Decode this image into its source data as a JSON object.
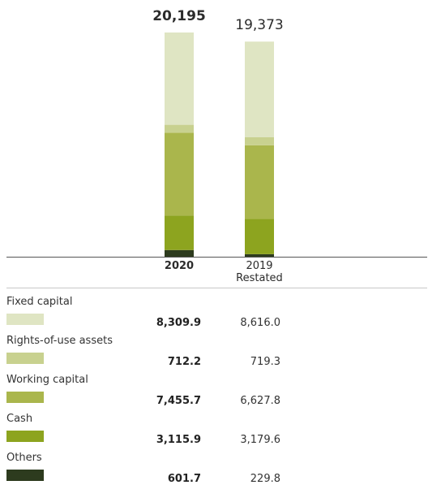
{
  "chart_data": {
    "type": "bar",
    "stacked": true,
    "categories": [
      "2020",
      "2019 Restated"
    ],
    "category_labels": [
      {
        "line1": "2020",
        "line2": ""
      },
      {
        "line1": "2019",
        "line2": "Restated"
      }
    ],
    "totals": [
      "20,195",
      "19,373"
    ],
    "total_values": [
      20195,
      19373
    ],
    "series": [
      {
        "name": "Others",
        "values": [
          601.7,
          229.8
        ],
        "display": [
          "601.7",
          "229.8"
        ],
        "color": "#2d3b1e"
      },
      {
        "name": "Cash",
        "values": [
          3115.9,
          3179.6
        ],
        "display": [
          "3,115.9",
          "3,179.6"
        ],
        "color": "#8da41f"
      },
      {
        "name": "Working capital",
        "values": [
          7455.7,
          6627.8
        ],
        "display": [
          "7,455.7",
          "6,627.8"
        ],
        "color": "#aab64c"
      },
      {
        "name": "Rights-of-use assets",
        "values": [
          712.2,
          719.3
        ],
        "display": [
          "712.2",
          "719.3"
        ],
        "color": "#c8d18f"
      },
      {
        "name": "Fixed capital",
        "values": [
          8309.9,
          8616.0
        ],
        "display": [
          "8,309.9",
          "8,616.0"
        ],
        "color": "#dfe5c3"
      }
    ],
    "legend_order": [
      "Fixed capital",
      "Rights-of-use assets",
      "Working capital",
      "Cash",
      "Others"
    ],
    "bold_category_index": 0
  }
}
